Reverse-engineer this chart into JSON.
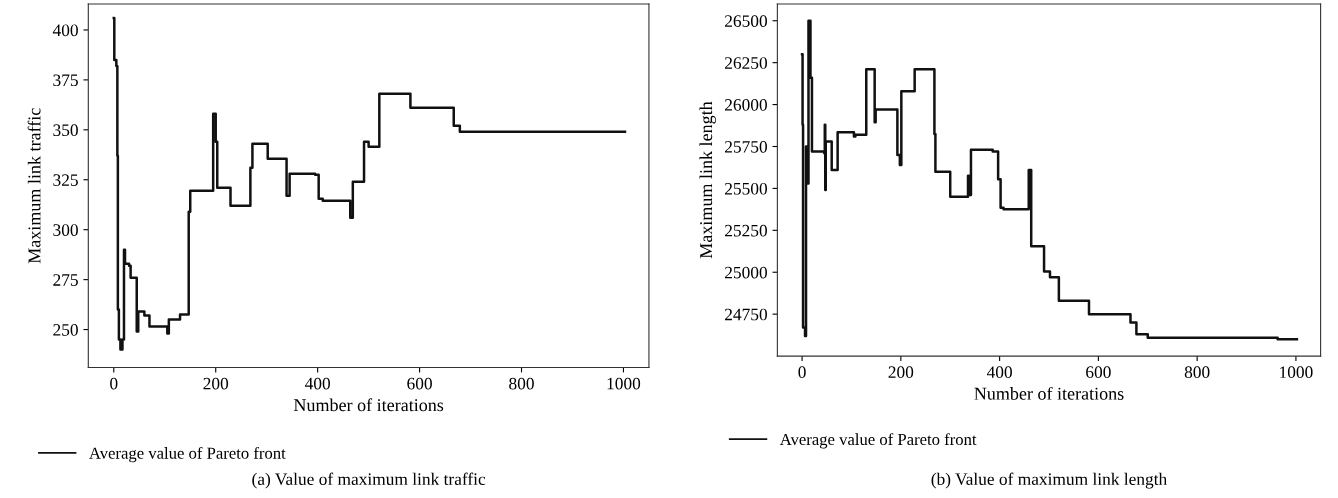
{
  "chart_data": [
    {
      "type": "step",
      "xlabel": "Number of iterations",
      "ylabel": "Maximum link traffic",
      "xlim": [
        -50,
        1050
      ],
      "ylim": [
        231,
        413
      ],
      "xticks": [
        0,
        200,
        400,
        600,
        800,
        1000
      ],
      "yticks": [
        250,
        275,
        300,
        325,
        350,
        375,
        400
      ],
      "legend": "bottom left",
      "grid": false,
      "annotations": [
        "(a) Value of maximum link traffic"
      ],
      "series": [
        {
          "name": "Average value of Pareto front",
          "color": "#111111",
          "x": [
            0,
            1,
            5,
            7,
            8,
            10,
            13,
            17,
            20,
            22,
            30,
            33,
            45,
            48,
            60,
            70,
            105,
            108,
            130,
            147,
            150,
            195,
            200,
            203,
            229,
            268,
            272,
            302,
            339,
            345,
            395,
            402,
            410,
            464,
            469,
            491,
            500,
            521,
            582,
            667,
            679,
            1003
          ],
          "values": [
            406,
            385,
            382,
            337,
            260,
            245,
            240,
            245,
            290,
            283,
            282,
            276,
            249,
            259,
            257,
            251.5,
            248,
            255,
            257.5,
            309,
            319.5,
            358,
            344,
            321,
            312,
            331,
            343,
            335.5,
            317,
            328,
            327.5,
            315.5,
            314.5,
            306,
            324,
            344,
            341.5,
            368,
            361,
            352,
            349,
            349
          ]
        }
      ]
    },
    {
      "type": "step",
      "xlabel": "Number of iterations",
      "ylabel": "Maximum link length",
      "xlim": [
        -50,
        1050
      ],
      "ylim": [
        24500,
        26600
      ],
      "xticks": [
        0,
        200,
        400,
        600,
        800,
        1000
      ],
      "yticks": [
        24750,
        25000,
        25250,
        25500,
        25750,
        26000,
        26250,
        26500
      ],
      "legend": "bottom left",
      "grid": false,
      "annotations": [
        "(b) Value of maximum link length"
      ],
      "series": [
        {
          "name": "Average value of Pareto front",
          "color": "#111111",
          "x": [
            0,
            1,
            2,
            6,
            8,
            12,
            13,
            17,
            20,
            45,
            46,
            47,
            48,
            60,
            72,
            105,
            108,
            130,
            147,
            149,
            193,
            198,
            201,
            228,
            268,
            270,
            300,
            336,
            338,
            342,
            386,
            397,
            402,
            408,
            459,
            464,
            490,
            502,
            520,
            581,
            665,
            677,
            700,
            963,
            1002
          ],
          "values": [
            26300,
            25880,
            24670,
            24620,
            25750,
            25530,
            26500,
            26160,
            25720,
            25710,
            25880,
            25490,
            25780,
            25610,
            25835,
            25810,
            25820,
            26210,
            25895,
            25970,
            25700,
            25640,
            26080,
            26210,
            25825,
            25600,
            25450,
            25575,
            25460,
            25730,
            25720,
            25555,
            25385,
            25375,
            25610,
            25155,
            25005,
            24970,
            24830,
            24750,
            24700,
            24630,
            24610,
            24600,
            24600
          ]
        }
      ]
    }
  ]
}
